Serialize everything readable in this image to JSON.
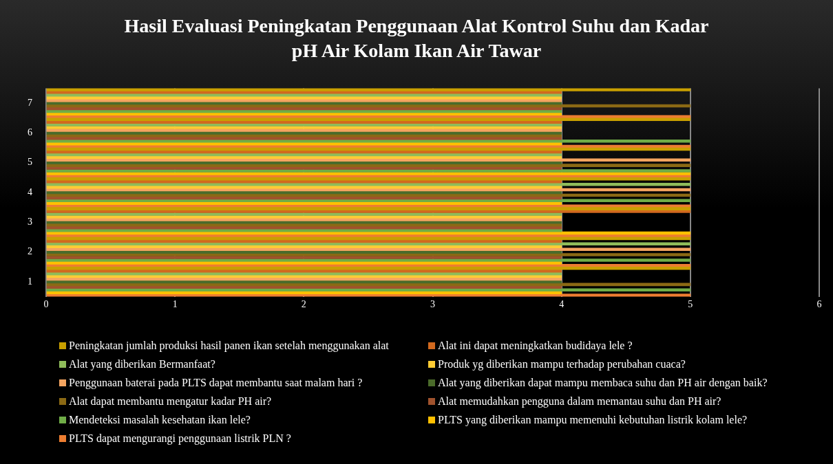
{
  "chart_data": {
    "type": "bar",
    "orientation": "horizontal",
    "title": "Hasil Evaluasi Peningkatan Penggunaan Alat Kontrol Suhu dan Kadar pH Air Kolam Ikan Air Tawar",
    "categories": [
      "7",
      "6",
      "5",
      "4",
      "3",
      "2",
      "1"
    ],
    "series": [
      {
        "name": "Peningkatan jumlah produksi hasil panen ikan setelah menggunakan alat",
        "color": "#c9a000",
        "values": [
          5,
          5,
          5,
          5,
          5,
          5,
          5
        ]
      },
      {
        "name": "Alat ini dapat meningkatkan budidaya lele ?",
        "color": "#d2691e",
        "values": [
          4,
          4,
          4,
          4,
          5,
          4,
          4
        ]
      },
      {
        "name": "Alat yang diberikan Bermanfaat?",
        "color": "#8fbc5a",
        "values": [
          4,
          4,
          4,
          5,
          4,
          5,
          4
        ]
      },
      {
        "name": "Produk yg diberikan mampu terhadap perubahan cuaca?",
        "color": "#ffcc33",
        "values": [
          4,
          4,
          4,
          4,
          4,
          4,
          4
        ]
      },
      {
        "name": "Penggunaan baterai pada PLTS dapat membantu saat malam hari ?",
        "color": "#f4a460",
        "values": [
          4,
          4,
          5,
          5,
          4,
          5,
          4
        ]
      },
      {
        "name": "Alat yang diberikan dapat mampu membaca suhu dan PH air dengan baik?",
        "color": "#4a6b2a",
        "values": [
          4,
          4,
          4,
          4,
          4,
          4,
          4
        ]
      },
      {
        "name": "Alat dapat membantu mengatur kadar PH air?",
        "color": "#8b6914",
        "values": [
          5,
          4,
          5,
          5,
          4,
          5,
          5
        ]
      },
      {
        "name": "Alat memudahkan pengguna dalam memantau suhu dan PH air?",
        "color": "#a0522d",
        "values": [
          4,
          4,
          4,
          4,
          4,
          4,
          4
        ]
      },
      {
        "name": "Mendeteksi masalah kesehatan ikan lele?",
        "color": "#70ad47",
        "values": [
          4,
          5,
          5,
          5,
          4,
          5,
          5
        ]
      },
      {
        "name": "PLTS yang diberikan mampu memenuhi kebutuhan listrik kolam lele?",
        "color": "#ffc000",
        "values": [
          4,
          4,
          5,
          4,
          5,
          4,
          4
        ]
      },
      {
        "name": "PLTS dapat mengurangi penggunaan listrik PLN ?",
        "color": "#ed7d31",
        "values": [
          5,
          5,
          5,
          5,
          5,
          5,
          5
        ]
      }
    ],
    "xlim": [
      0,
      6
    ],
    "xticks": [
      0,
      1,
      2,
      3,
      4,
      5,
      6
    ],
    "grid": "x",
    "legend": "bottom"
  }
}
